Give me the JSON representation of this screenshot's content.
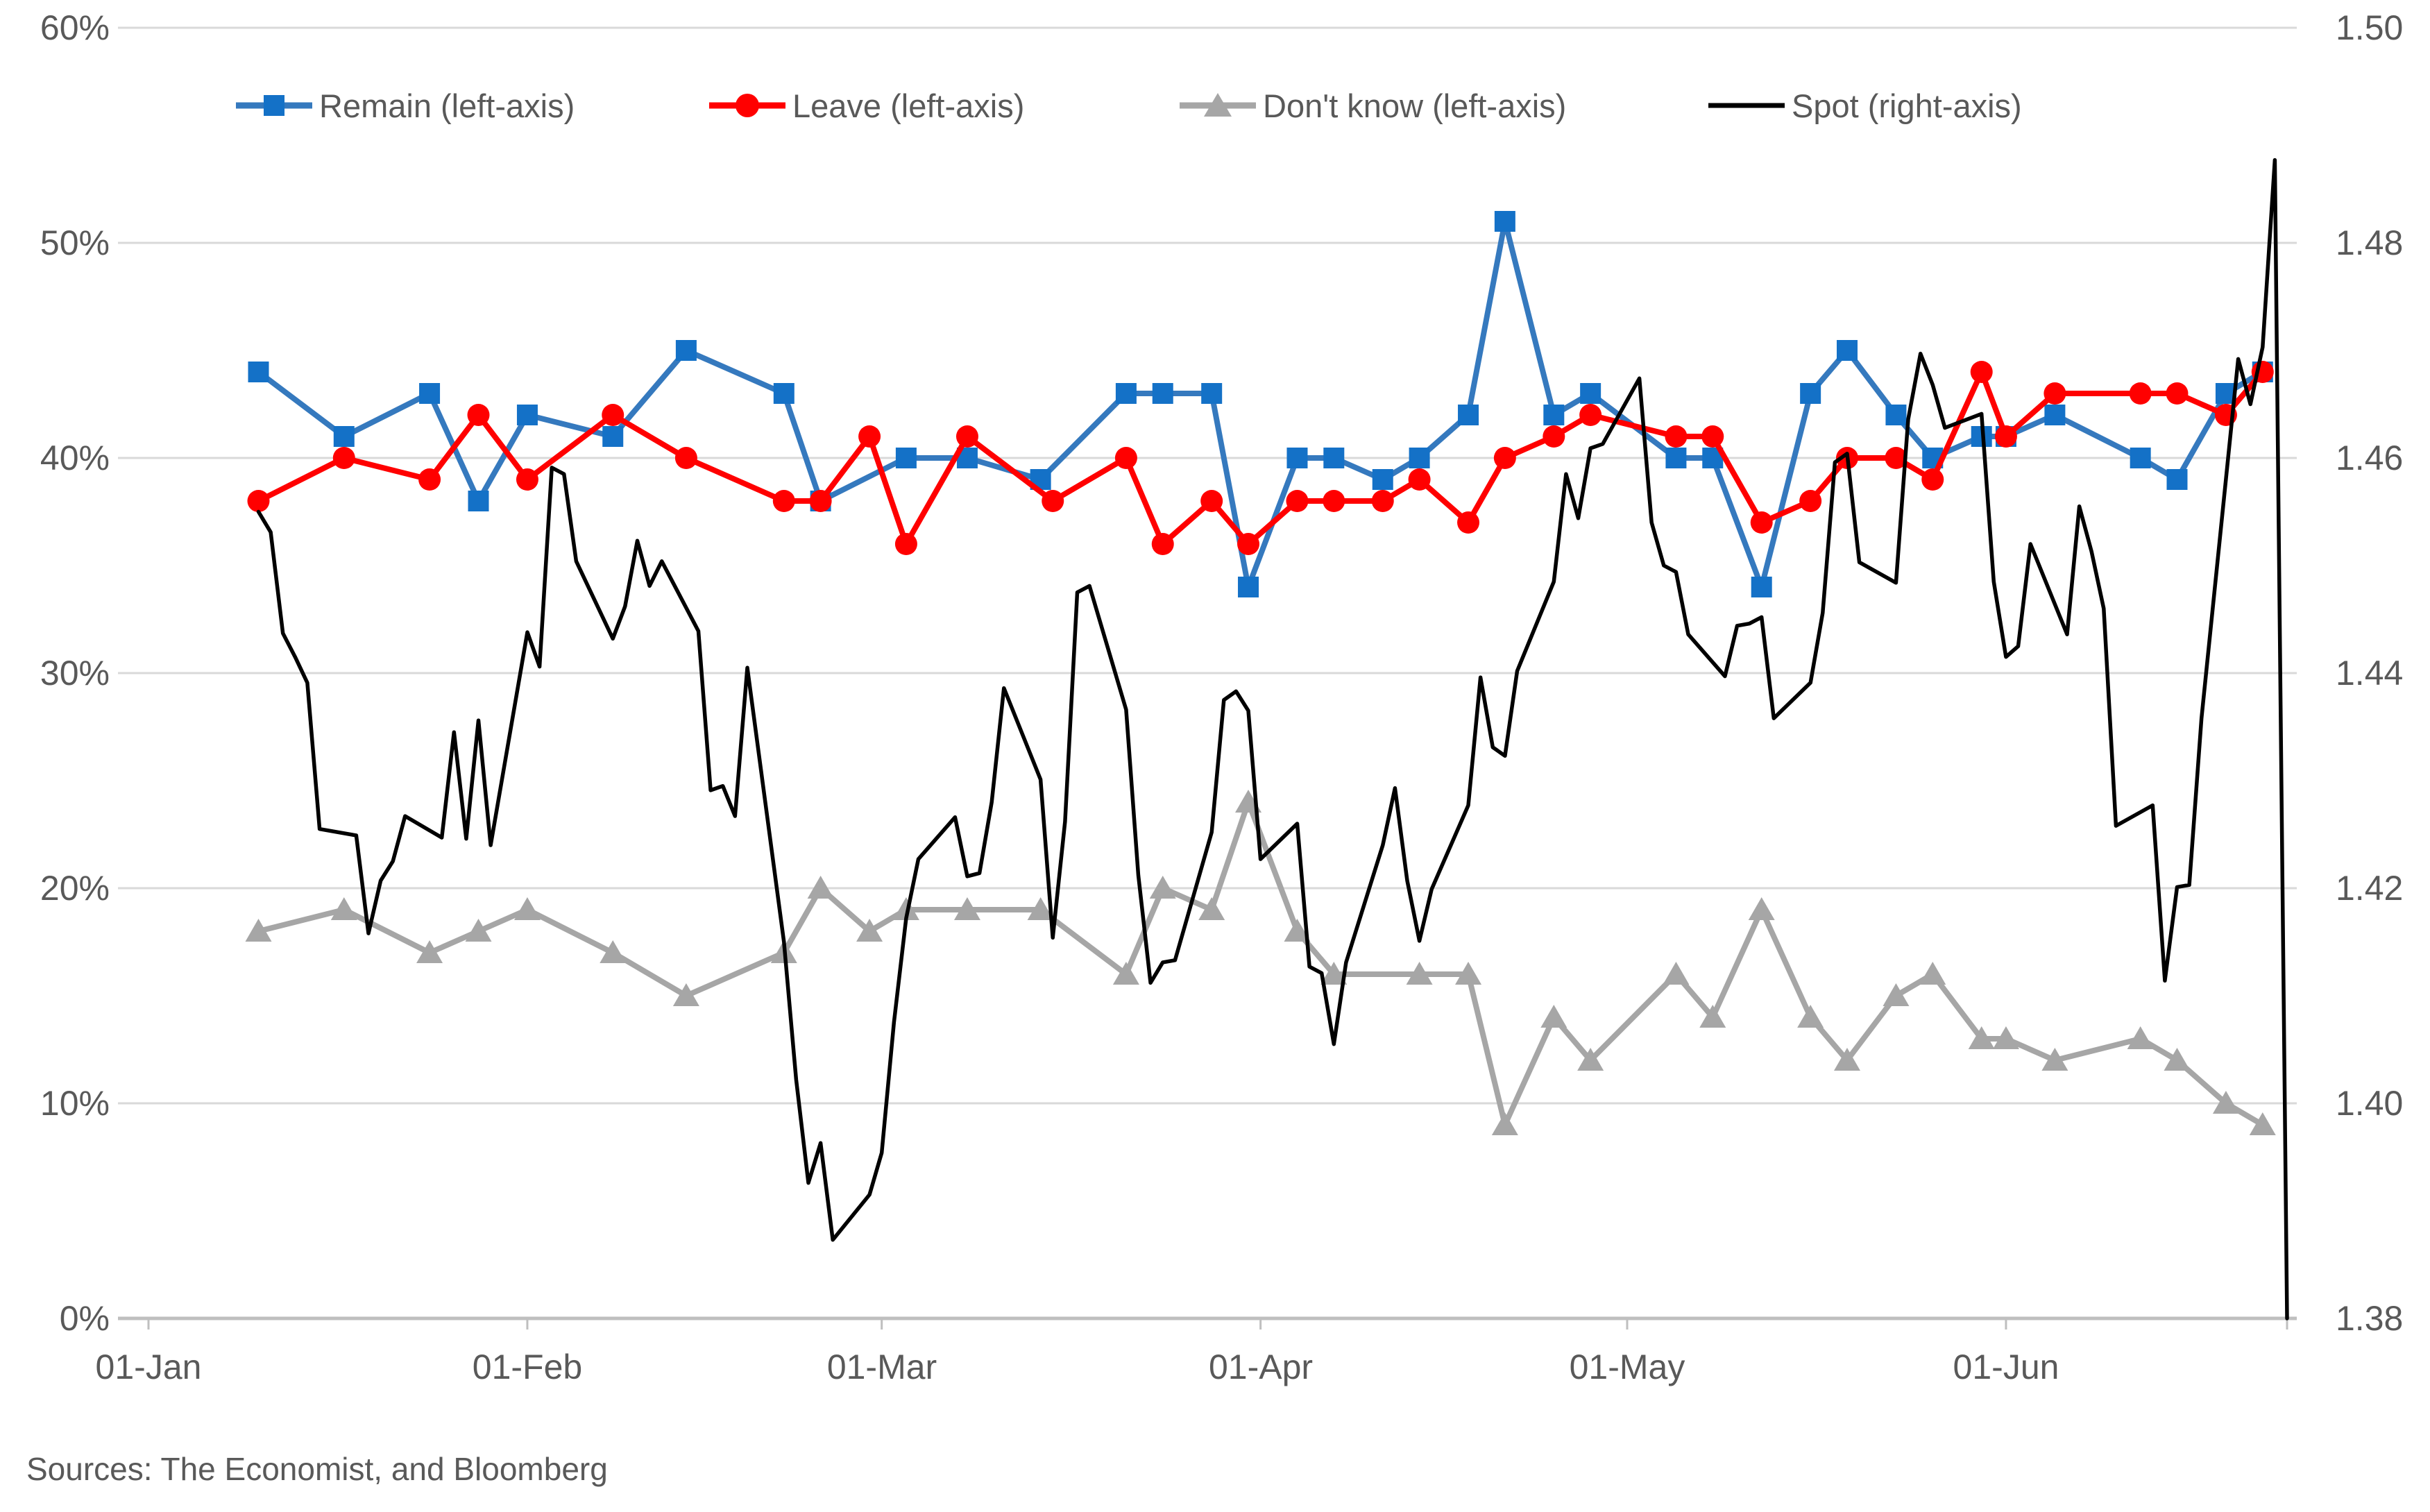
{
  "source_note": "Sources: The Economist, and Bloomberg",
  "chart_data": {
    "type": "line",
    "title": "",
    "x_unit": "day_of_year_2016",
    "x_axis": {
      "tick_labels": [
        "01-Jan",
        "01-Feb",
        "01-Mar",
        "01-Apr",
        "01-May",
        "01-Jun"
      ],
      "tick_days": [
        1,
        32,
        61,
        92,
        122,
        153
      ],
      "domain_days": [
        1,
        176
      ],
      "grid": false
    },
    "left_axis": {
      "labels": [
        "60%",
        "50%",
        "40%",
        "30%",
        "20%",
        "10%",
        "0%"
      ],
      "tick_values": [
        60,
        50,
        40,
        30,
        20,
        10,
        0
      ],
      "range": [
        0,
        60
      ],
      "grid": true
    },
    "right_axis": {
      "labels": [
        "1.50",
        "1.48",
        "1.46",
        "1.44",
        "1.42",
        "1.40",
        "1.38"
      ],
      "tick_values": [
        1.5,
        1.48,
        1.46,
        1.44,
        1.42,
        1.4,
        1.38
      ],
      "range": [
        1.38,
        1.5
      ]
    },
    "legend_position": "top",
    "series": [
      {
        "id": "remain",
        "name": "Remain (left-axis)",
        "axis": "left",
        "line_color": "#3579BE",
        "marker_color": "#1471C7",
        "marker": "square",
        "points": [
          [
            10,
            44
          ],
          [
            17,
            41
          ],
          [
            24,
            43
          ],
          [
            28,
            38
          ],
          [
            32,
            42
          ],
          [
            39,
            41
          ],
          [
            45,
            45
          ],
          [
            53,
            43
          ],
          [
            56,
            38
          ],
          [
            63,
            40
          ],
          [
            68,
            40
          ],
          [
            74,
            39
          ],
          [
            81,
            43
          ],
          [
            84,
            43
          ],
          [
            88,
            43
          ],
          [
            91,
            34
          ],
          [
            95,
            40
          ],
          [
            98,
            40
          ],
          [
            102,
            39
          ],
          [
            105,
            40
          ],
          [
            109,
            42
          ],
          [
            112,
            51
          ],
          [
            116,
            42
          ],
          [
            119,
            43
          ],
          [
            126,
            40
          ],
          [
            129,
            40
          ],
          [
            133,
            34
          ],
          [
            137,
            43
          ],
          [
            140,
            45
          ],
          [
            144,
            42
          ],
          [
            147,
            40
          ],
          [
            151,
            41
          ],
          [
            153,
            41
          ],
          [
            157,
            42
          ],
          [
            164,
            40
          ],
          [
            167,
            39
          ],
          [
            171,
            43
          ],
          [
            174,
            44
          ]
        ]
      },
      {
        "id": "leave",
        "name": "Leave (left-axis)",
        "axis": "left",
        "line_color": "#FF0000",
        "marker_color": "#FF0000",
        "marker": "circle",
        "points": [
          [
            10,
            38
          ],
          [
            17,
            40
          ],
          [
            24,
            39
          ],
          [
            28,
            42
          ],
          [
            32,
            39
          ],
          [
            39,
            42
          ],
          [
            45,
            40
          ],
          [
            53,
            38
          ],
          [
            56,
            38
          ],
          [
            60,
            41
          ],
          [
            63,
            36
          ],
          [
            68,
            41
          ],
          [
            75,
            38
          ],
          [
            81,
            40
          ],
          [
            84,
            36
          ],
          [
            88,
            38
          ],
          [
            91,
            36
          ],
          [
            95,
            38
          ],
          [
            98,
            38
          ],
          [
            102,
            38
          ],
          [
            105,
            39
          ],
          [
            109,
            37
          ],
          [
            112,
            40
          ],
          [
            116,
            41
          ],
          [
            119,
            42
          ],
          [
            126,
            41
          ],
          [
            129,
            41
          ],
          [
            133,
            37
          ],
          [
            137,
            38
          ],
          [
            140,
            40
          ],
          [
            144,
            40
          ],
          [
            147,
            39
          ],
          [
            151,
            44
          ],
          [
            153,
            41
          ],
          [
            157,
            43
          ],
          [
            164,
            43
          ],
          [
            167,
            43
          ],
          [
            171,
            42
          ],
          [
            174,
            44
          ]
        ]
      },
      {
        "id": "dontknow",
        "name": "Don't know (left-axis)",
        "axis": "left",
        "line_color": "#A6A6A6",
        "marker_color": "#A6A6A6",
        "marker": "triangle",
        "points": [
          [
            10,
            18
          ],
          [
            17,
            19
          ],
          [
            24,
            17
          ],
          [
            28,
            18
          ],
          [
            32,
            19
          ],
          [
            39,
            17
          ],
          [
            45,
            15
          ],
          [
            53,
            17
          ],
          [
            56,
            20
          ],
          [
            60,
            18
          ],
          [
            63,
            19
          ],
          [
            68,
            19
          ],
          [
            74,
            19
          ],
          [
            81,
            16
          ],
          [
            84,
            20
          ],
          [
            88,
            19
          ],
          [
            91,
            24
          ],
          [
            95,
            18
          ],
          [
            98,
            16
          ],
          [
            105,
            16
          ],
          [
            109,
            16
          ],
          [
            112,
            9
          ],
          [
            116,
            14
          ],
          [
            119,
            12
          ],
          [
            126,
            16
          ],
          [
            129,
            14
          ],
          [
            133,
            19
          ],
          [
            137,
            14
          ],
          [
            140,
            12
          ],
          [
            144,
            15
          ],
          [
            147,
            16
          ],
          [
            151,
            13
          ],
          [
            153,
            13
          ],
          [
            157,
            12
          ],
          [
            164,
            13
          ],
          [
            167,
            12
          ],
          [
            171,
            10
          ],
          [
            174,
            9
          ]
        ]
      },
      {
        "id": "spot",
        "name": "Spot (right-axis)",
        "axis": "right",
        "line_color": "#000000",
        "marker_color": "#000000",
        "marker": "none",
        "points": [
          [
            10,
            1.455
          ],
          [
            11,
            1.4531
          ],
          [
            12,
            1.4437
          ],
          [
            13,
            1.4415
          ],
          [
            14,
            1.4391
          ],
          [
            15,
            1.4255
          ],
          [
            18,
            1.4249
          ],
          [
            19,
            1.4158
          ],
          [
            20,
            1.4207
          ],
          [
            21,
            1.4225
          ],
          [
            22,
            1.4267
          ],
          [
            25,
            1.4247
          ],
          [
            26,
            1.4345
          ],
          [
            27,
            1.4246
          ],
          [
            28,
            1.4356
          ],
          [
            29,
            1.424
          ],
          [
            32,
            1.4438
          ],
          [
            33,
            1.4406
          ],
          [
            34,
            1.4591
          ],
          [
            35,
            1.4585
          ],
          [
            36,
            1.4504
          ],
          [
            39,
            1.4432
          ],
          [
            40,
            1.4462
          ],
          [
            41,
            1.4523
          ],
          [
            42,
            1.4481
          ],
          [
            43,
            1.4504
          ],
          [
            46,
            1.4439
          ],
          [
            47,
            1.4291
          ],
          [
            48,
            1.4295
          ],
          [
            49,
            1.4267
          ],
          [
            50,
            1.4405
          ],
          [
            53,
            1.415
          ],
          [
            54,
            1.4022
          ],
          [
            55,
            1.3926
          ],
          [
            56,
            1.3963
          ],
          [
            57,
            1.3873
          ],
          [
            60,
            1.3915
          ],
          [
            61,
            1.3954
          ],
          [
            62,
            1.4075
          ],
          [
            63,
            1.4172
          ],
          [
            64,
            1.4227
          ],
          [
            67,
            1.4266
          ],
          [
            68,
            1.4211
          ],
          [
            69,
            1.4214
          ],
          [
            70,
            1.428
          ],
          [
            71,
            1.4386
          ],
          [
            74,
            1.4301
          ],
          [
            75,
            1.4154
          ],
          [
            76,
            1.4262
          ],
          [
            77,
            1.4475
          ],
          [
            78,
            1.4481
          ],
          [
            81,
            1.4366
          ],
          [
            82,
            1.4212
          ],
          [
            83,
            1.4112
          ],
          [
            84,
            1.4131
          ],
          [
            85,
            1.4133
          ],
          [
            88,
            1.4252
          ],
          [
            89,
            1.4375
          ],
          [
            90,
            1.4383
          ],
          [
            91,
            1.4365
          ],
          [
            92,
            1.4227
          ],
          [
            95,
            1.426
          ],
          [
            96,
            1.4127
          ],
          [
            97,
            1.4121
          ],
          [
            98,
            1.4055
          ],
          [
            99,
            1.4131
          ],
          [
            102,
            1.424
          ],
          [
            103,
            1.4293
          ],
          [
            104,
            1.4207
          ],
          [
            105,
            1.4151
          ],
          [
            106,
            1.4199
          ],
          [
            109,
            1.4277
          ],
          [
            110,
            1.4396
          ],
          [
            111,
            1.4331
          ],
          [
            112,
            1.4323
          ],
          [
            113,
            1.4402
          ],
          [
            116,
            1.4485
          ],
          [
            117,
            1.4585
          ],
          [
            118,
            1.4544
          ],
          [
            119,
            1.4609
          ],
          [
            120,
            1.4613
          ],
          [
            123,
            1.4674
          ],
          [
            124,
            1.454
          ],
          [
            125,
            1.45
          ],
          [
            126,
            1.4494
          ],
          [
            127,
            1.4436
          ],
          [
            130,
            1.4397
          ],
          [
            131,
            1.4444
          ],
          [
            132,
            1.4446
          ],
          [
            133,
            1.4452
          ],
          [
            134,
            1.4358
          ],
          [
            137,
            1.4391
          ],
          [
            138,
            1.4456
          ],
          [
            139,
            1.4596
          ],
          [
            140,
            1.4604
          ],
          [
            141,
            1.4503
          ],
          [
            144,
            1.4484
          ],
          [
            145,
            1.4636
          ],
          [
            146,
            1.4697
          ],
          [
            147,
            1.4668
          ],
          [
            148,
            1.4628
          ],
          [
            151,
            1.4641
          ],
          [
            152,
            1.4485
          ],
          [
            153,
            1.4415
          ],
          [
            154,
            1.4425
          ],
          [
            155,
            1.452
          ],
          [
            158,
            1.4436
          ],
          [
            159,
            1.4555
          ],
          [
            160,
            1.4513
          ],
          [
            161,
            1.446
          ],
          [
            162,
            1.4258
          ],
          [
            165,
            1.4277
          ],
          [
            166,
            1.4114
          ],
          [
            167,
            1.4201
          ],
          [
            168,
            1.4203
          ],
          [
            169,
            1.4358
          ],
          [
            172,
            1.4692
          ],
          [
            173,
            1.465
          ],
          [
            174,
            1.4703
          ],
          [
            175,
            1.4877
          ],
          [
            176,
            1.38
          ]
        ]
      }
    ],
    "colors": {
      "grid": "#D9D9D9",
      "axis_line": "#BFBFBF",
      "text": "#595959"
    }
  }
}
